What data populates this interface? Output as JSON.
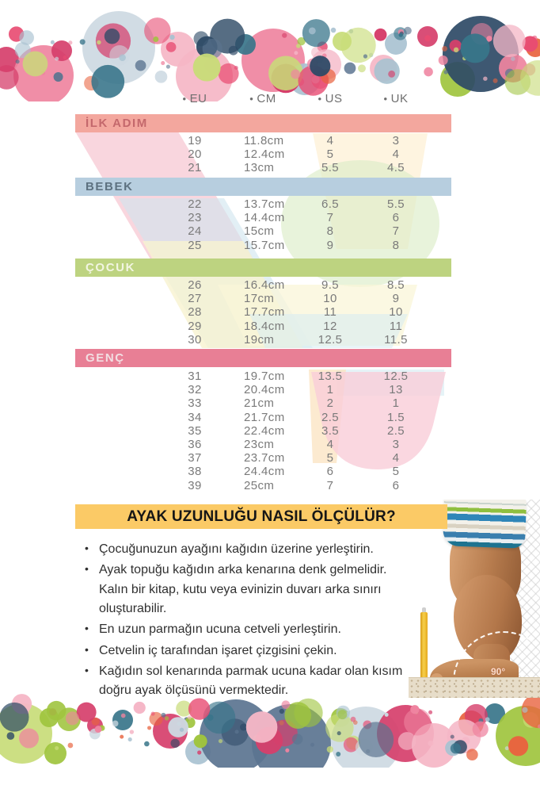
{
  "size_chart": {
    "columns": [
      {
        "label": "EU"
      },
      {
        "label": "CM"
      },
      {
        "label": "US"
      },
      {
        "label": "UK"
      }
    ],
    "sections": [
      {
        "label": "İLK ADIM",
        "bar_bg": "#f3a79e",
        "bar_text": "#c4686c",
        "rows": [
          [
            "19",
            "11.8cm",
            "4",
            "3"
          ],
          [
            "20",
            "12.4cm",
            "5",
            "4"
          ],
          [
            "21",
            "13cm",
            "5.5",
            "4.5"
          ]
        ]
      },
      {
        "label": "BEBEK",
        "bar_bg": "#b7cedf",
        "bar_text": "#5d7180",
        "rows": [
          [
            "22",
            "13.7cm",
            "6.5",
            "5.5"
          ],
          [
            "23",
            "14.4cm",
            "7",
            "6"
          ],
          [
            "24",
            "15cm",
            "8",
            "7"
          ],
          [
            "25",
            "15.7cm",
            "9",
            "8"
          ]
        ]
      },
      {
        "label": "ÇOCUK",
        "bar_bg": "#bdd380",
        "bar_text": "#f2f5e2",
        "rows": [
          [
            "26",
            "16.4cm",
            "9.5",
            "8.5"
          ],
          [
            "27",
            "17cm",
            "10",
            "9"
          ],
          [
            "28",
            "17.7cm",
            "11",
            "10"
          ],
          [
            "29",
            "18.4cm",
            "12",
            "11"
          ],
          [
            "30",
            "19cm",
            "12.5",
            "11.5"
          ]
        ]
      },
      {
        "label": "GENÇ",
        "bar_bg": "#e87f95",
        "bar_text": "#f2dee2",
        "rows": [
          [
            "31",
            "19.7cm",
            "13.5",
            "12.5"
          ],
          [
            "32",
            "20.4cm",
            "1",
            "13"
          ],
          [
            "33",
            "21cm",
            "2",
            "1"
          ],
          [
            "34",
            "21.7cm",
            "2.5",
            "1.5"
          ],
          [
            "35",
            "22.4cm",
            "3.5",
            "2.5"
          ],
          [
            "36",
            "23cm",
            "4",
            "3"
          ],
          [
            "37",
            "23.7cm",
            "5",
            "4"
          ],
          [
            "38",
            "24.4cm",
            "6",
            "5"
          ],
          [
            "39",
            "25cm",
            "7",
            "6"
          ]
        ]
      }
    ]
  },
  "measure_guide": {
    "title": "AYAK UZUNLUĞU NASIL ÖLÇÜLÜR?",
    "title_bg": "#fbca66",
    "bullets": [
      "Çocuğunuzun ayağını kağıdın üzerine yerleştirin.",
      "Ayak topuğu kağıdın arka kenarına denk gelmelidir. Kalın bir kitap, kutu veya evinizin duvarı arka sınırı oluşturabilir.",
      "En uzun parmağın ucuna cetveli yerleştirin.",
      "Cetvelin iç tarafından işaret çizgisini çekin.",
      "Kağıdın sol kenarında parmak ucuna kadar olan kısım doğru ayak ölçüsünü vermektedir."
    ]
  },
  "photo": {
    "angle_label": "90°"
  },
  "decor": {
    "palette": [
      "#d63f6b",
      "#ef84a0",
      "#f5b6c6",
      "#2e4a66",
      "#cdd9e2",
      "#38758a",
      "#9fc43e",
      "#c8dc78",
      "#e8633f",
      "#a9c2d1",
      "#5b7490",
      "#e84c72"
    ]
  }
}
